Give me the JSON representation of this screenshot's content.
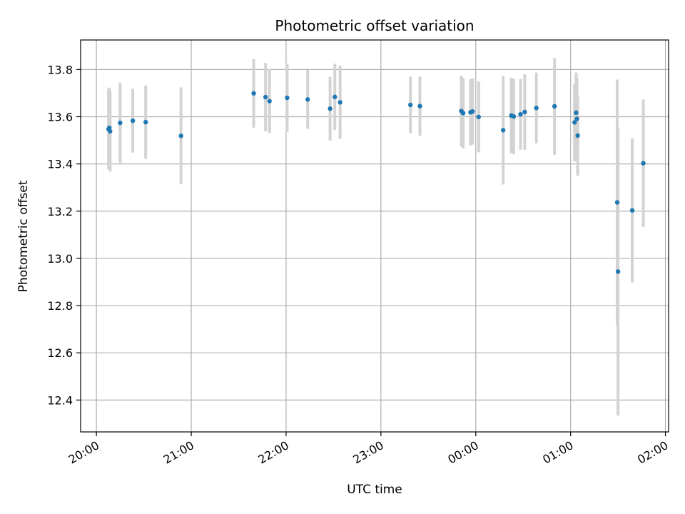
{
  "chart_data": {
    "type": "scatter",
    "title": "Photometric offset variation",
    "xlabel": "UTC time",
    "ylabel": "Photometric offset",
    "x_tick_labels": [
      "20:00",
      "21:00",
      "22:00",
      "23:00",
      "00:00",
      "01:00",
      "02:00"
    ],
    "x_tick_values": [
      "20:00",
      "21:00",
      "22:00",
      "23:00",
      "24:00",
      "25:00",
      "26:00"
    ],
    "y_tick_labels": [
      "12.4",
      "12.6",
      "12.8",
      "13.0",
      "13.2",
      "13.4",
      "13.6",
      "13.8"
    ],
    "y_tick_values": [
      12.4,
      12.6,
      12.8,
      13.0,
      13.2,
      13.4,
      13.6,
      13.8
    ],
    "xlim": [
      "19:50",
      "26:02"
    ],
    "ylim": [
      12.265,
      13.925
    ],
    "grid": true,
    "colors": {
      "points": "#1f77b4",
      "errorbars": "#d3d3d3",
      "grid": "#b0b0b0"
    },
    "series": [
      {
        "points": [
          {
            "x": "20:07:40",
            "y": 13.547,
            "err": 0.17
          },
          {
            "x": "20:08:10",
            "y": 13.553,
            "err": 0.17
          },
          {
            "x": "20:08:40",
            "y": 13.538,
            "err": 0.17
          },
          {
            "x": "20:15:00",
            "y": 13.574,
            "err": 0.17
          },
          {
            "x": "20:23:00",
            "y": 13.583,
            "err": 0.135
          },
          {
            "x": "20:31:10",
            "y": 13.577,
            "err": 0.155
          },
          {
            "x": "20:53:30",
            "y": 13.519,
            "err": 0.205
          },
          {
            "x": "21:39:30",
            "y": 13.699,
            "err": 0.145
          },
          {
            "x": "21:47:00",
            "y": 13.683,
            "err": 0.145
          },
          {
            "x": "21:49:30",
            "y": 13.666,
            "err": 0.135
          },
          {
            "x": "22:00:40",
            "y": 13.68,
            "err": 0.145
          },
          {
            "x": "22:13:40",
            "y": 13.673,
            "err": 0.125
          },
          {
            "x": "22:27:50",
            "y": 13.634,
            "err": 0.135
          },
          {
            "x": "22:30:50",
            "y": 13.684,
            "err": 0.14
          },
          {
            "x": "22:34:10",
            "y": 13.661,
            "err": 0.155
          },
          {
            "x": "23:18:40",
            "y": 13.65,
            "err": 0.12
          },
          {
            "x": "23:24:40",
            "y": 13.645,
            "err": 0.125
          },
          {
            "x": "23:50:50",
            "y": 13.624,
            "err": 0.15
          },
          {
            "x": "23:52:00",
            "y": 13.615,
            "err": 0.15
          },
          {
            "x": "23:56:40",
            "y": 13.619,
            "err": 0.14
          },
          {
            "x": "23:58:00",
            "y": 13.622,
            "err": 0.14
          },
          {
            "x": "24:01:50",
            "y": 13.599,
            "err": 0.15
          },
          {
            "x": "24:17:20",
            "y": 13.543,
            "err": 0.23
          },
          {
            "x": "24:22:30",
            "y": 13.605,
            "err": 0.16
          },
          {
            "x": "24:24:00",
            "y": 13.601,
            "err": 0.16
          },
          {
            "x": "24:28:20",
            "y": 13.61,
            "err": 0.15
          },
          {
            "x": "24:31:00",
            "y": 13.62,
            "err": 0.16
          },
          {
            "x": "24:38:20",
            "y": 13.637,
            "err": 0.15
          },
          {
            "x": "24:49:50",
            "y": 13.644,
            "err": 0.205
          },
          {
            "x": "25:02:30",
            "y": 13.576,
            "err": 0.165
          },
          {
            "x": "25:03:30",
            "y": 13.617,
            "err": 0.17
          },
          {
            "x": "25:04:00",
            "y": 13.591,
            "err": 0.175
          },
          {
            "x": "25:04:30",
            "y": 13.52,
            "err": 0.17
          },
          {
            "x": "25:29:30",
            "y": 13.237,
            "err": 0.52
          },
          {
            "x": "25:30:00",
            "y": 12.944,
            "err": 0.61
          },
          {
            "x": "25:39:00",
            "y": 13.203,
            "err": 0.305
          },
          {
            "x": "25:46:00",
            "y": 13.403,
            "err": 0.27
          }
        ]
      }
    ]
  }
}
